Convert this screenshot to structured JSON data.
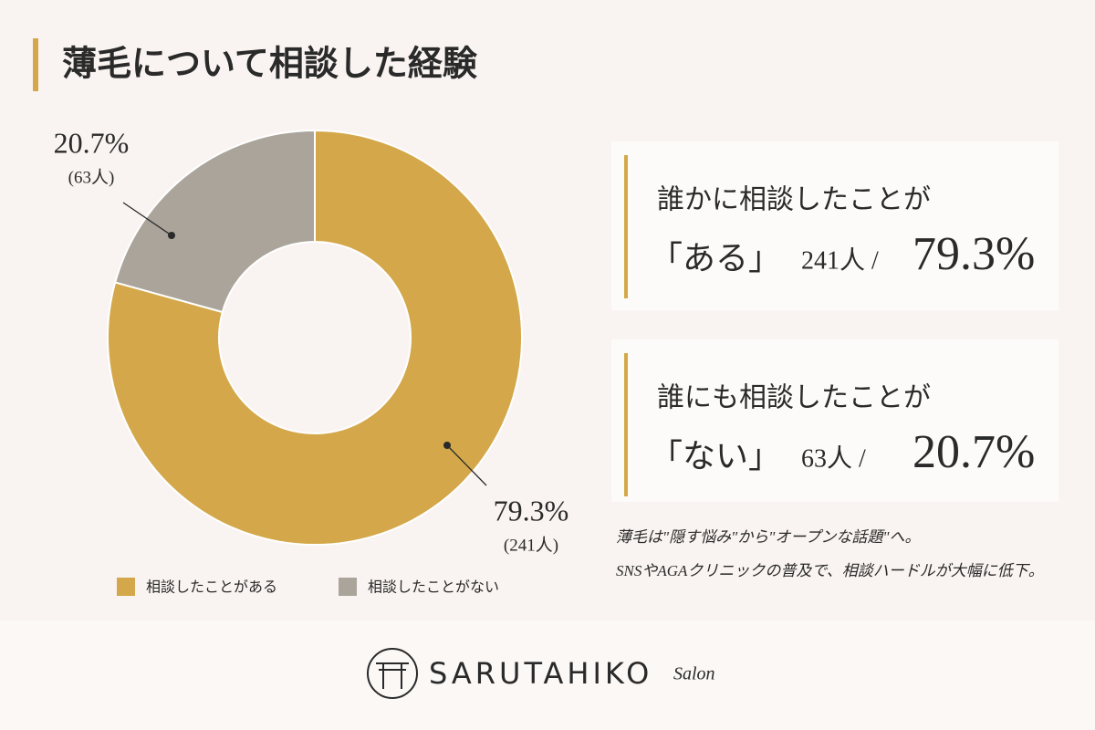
{
  "chart_data": {
    "type": "pie",
    "donut": true,
    "title": "薄毛について相談した経験",
    "categories": [
      "相談したことがある",
      "相談したことがない"
    ],
    "values": [
      79.3,
      20.7
    ],
    "value_labels": [
      "79.3%",
      "20.7%"
    ],
    "count_labels": [
      "(241人)",
      "(63人)"
    ],
    "colors": [
      "#d4a84a",
      "#aaa49b"
    ],
    "legend": "bottom"
  },
  "cards": [
    {
      "line1": "誰かに相談したことが",
      "answer": "「ある」",
      "count": "241人 /",
      "percent": "79.3%",
      "color": "#d4a84a"
    },
    {
      "line1": "誰にも相談したことが",
      "answer": "「ない」",
      "count": "63人 /",
      "percent": "20.7%",
      "color": "#9a9590"
    }
  ],
  "note": [
    "薄毛は\"隠す悩み\"から\"オープンな話題\"へ。",
    "SNSやAGAクリニックの普及で、相談ハードルが大幅に低下。"
  ],
  "logo": {
    "name": "SARUTAHIKO",
    "sub": "Salon"
  }
}
